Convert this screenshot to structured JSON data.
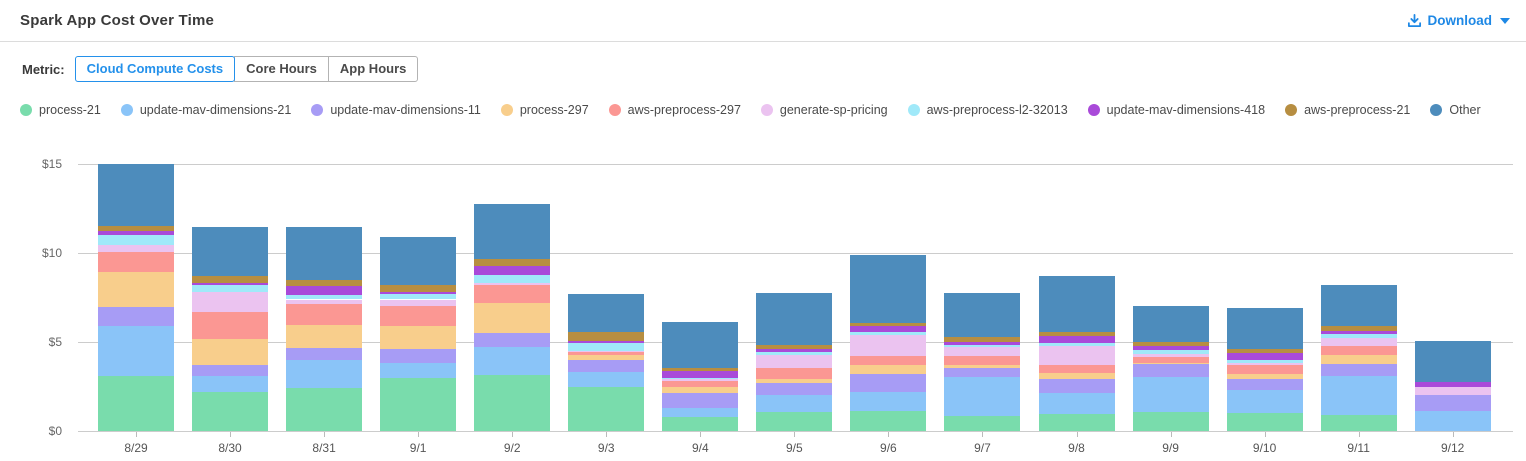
{
  "header": {
    "title": "Spark App Cost Over Time",
    "download_label": "Download"
  },
  "metric": {
    "label": "Metric:",
    "options": [
      {
        "label": "Cloud Compute Costs",
        "selected": true
      },
      {
        "label": "Core Hours",
        "selected": false
      },
      {
        "label": "App Hours",
        "selected": false
      }
    ]
  },
  "colors": {
    "accent_blue": "#1E88E5",
    "grid": "#cccccc",
    "axis_text": "#666666"
  },
  "chart_data": {
    "type": "bar",
    "stacked": true,
    "title": "Spark App Cost Over Time",
    "xlabel": "",
    "ylabel": "",
    "grid": true,
    "legend_position": "top",
    "ylim": [
      0,
      15.5
    ],
    "ytick_values": [
      0,
      5,
      10,
      15
    ],
    "ytick_labels": [
      "$0",
      "$5",
      "$10",
      "$15"
    ],
    "categories": [
      "8/29",
      "8/30",
      "8/31",
      "9/1",
      "9/2",
      "9/3",
      "9/4",
      "9/5",
      "9/6",
      "9/7",
      "9/8",
      "9/9",
      "9/10",
      "9/11",
      "9/12"
    ],
    "series": [
      {
        "name": "process-21",
        "color": "#79DCAC",
        "values": [
          3.1,
          2.2,
          2.4,
          3.0,
          3.15,
          2.5,
          0.8,
          1.05,
          1.15,
          0.85,
          0.95,
          1.05,
          1.0,
          0.9,
          0
        ]
      },
      {
        "name": "update-mav-dimensions-21",
        "color": "#8AC4F8",
        "values": [
          2.8,
          0.9,
          1.6,
          0.85,
          1.55,
          0.8,
          0.5,
          0.95,
          1.05,
          2.2,
          1.2,
          2.0,
          1.3,
          2.2,
          1.15
        ]
      },
      {
        "name": "update-mav-dimensions-11",
        "color": "#A79CF5",
        "values": [
          1.05,
          0.6,
          0.65,
          0.75,
          0.8,
          0.7,
          0.85,
          0.7,
          1.0,
          0.5,
          0.8,
          0.7,
          0.6,
          0.65,
          0.85
        ]
      },
      {
        "name": "process-297",
        "color": "#F8CE8C",
        "values": [
          2.0,
          1.45,
          1.3,
          1.3,
          1.7,
          0.27,
          0.3,
          0.25,
          0.5,
          0.15,
          0.3,
          0.1,
          0.3,
          0.5,
          0
        ]
      },
      {
        "name": "aws-preprocess-297",
        "color": "#FB9793",
        "values": [
          1.1,
          1.55,
          1.2,
          1.15,
          1.0,
          0.15,
          0.35,
          0.6,
          0.5,
          0.5,
          0.45,
          0.3,
          0.5,
          0.55,
          0
        ]
      },
      {
        "name": "generate-sp-pricing",
        "color": "#EBC3F0",
        "values": [
          0.4,
          1.1,
          0.25,
          0.35,
          0.15,
          0.1,
          0.15,
          0.7,
          1.2,
          0.5,
          1.1,
          0.2,
          0.1,
          0.45,
          0.45
        ]
      },
      {
        "name": "aws-preprocess-l2-32013",
        "color": "#A0E9F9",
        "values": [
          0.6,
          0.4,
          0.25,
          0.3,
          0.45,
          0.42,
          0.05,
          0.2,
          0.15,
          0.15,
          0.15,
          0.2,
          0.2,
          0.2,
          0
        ]
      },
      {
        "name": "update-mav-dimensions-418",
        "color": "#A94AD9",
        "values": [
          0.2,
          0.15,
          0.5,
          0.15,
          0.5,
          0.13,
          0.4,
          0.15,
          0.35,
          0.18,
          0.4,
          0.22,
          0.4,
          0.2,
          0.3
        ]
      },
      {
        "name": "aws-preprocess-21",
        "color": "#B78E41",
        "values": [
          0.3,
          0.35,
          0.35,
          0.35,
          0.4,
          0.5,
          0.15,
          0.25,
          0.2,
          0.25,
          0.2,
          0.23,
          0.2,
          0.25,
          0
        ]
      },
      {
        "name": "Other",
        "color": "#4D8CBC",
        "values": [
          3.5,
          2.8,
          3.0,
          2.7,
          3.05,
          2.13,
          2.6,
          2.9,
          3.8,
          2.47,
          3.2,
          2.05,
          2.3,
          2.3,
          2.3
        ]
      }
    ]
  }
}
